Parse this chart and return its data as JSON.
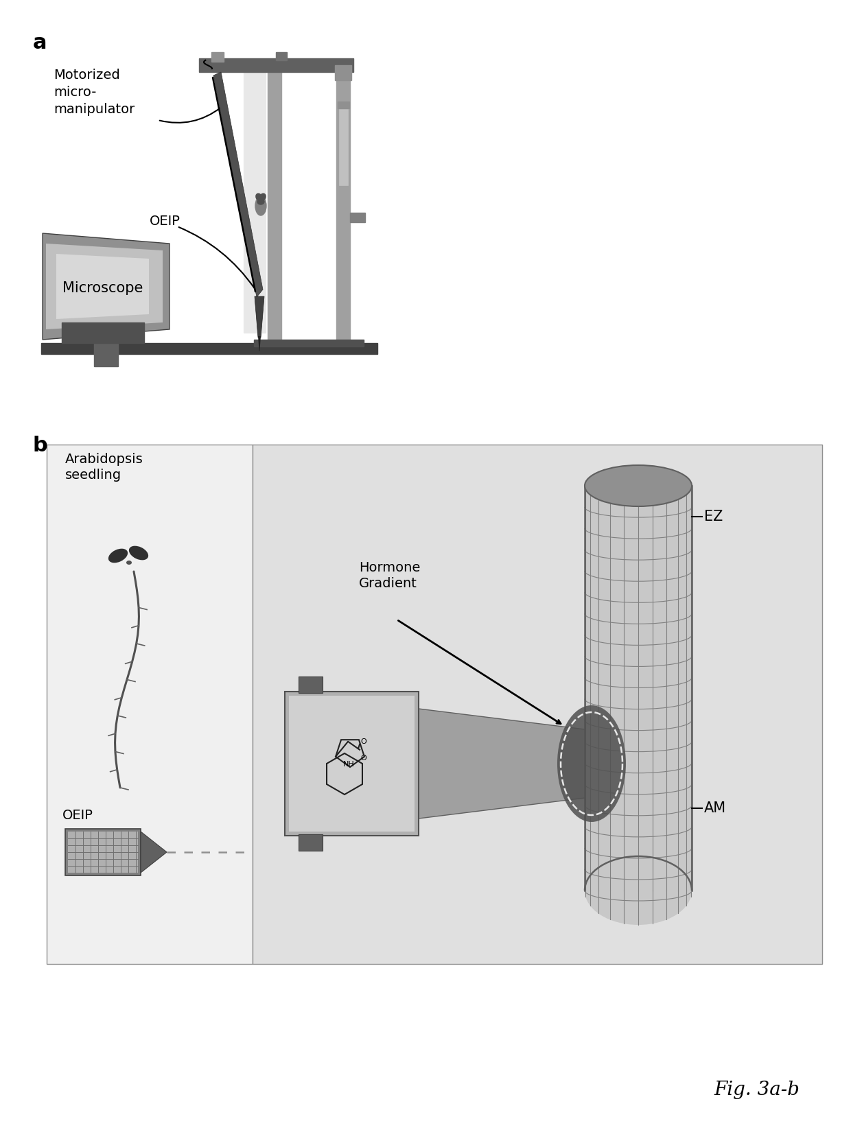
{
  "background_color": "#ffffff",
  "panel_a_label": "a",
  "panel_b_label": "b",
  "panel_a_texts": {
    "motorized": "Motorized\nmicro-\nmanipulator",
    "oeip": "OEIP",
    "microscope": "Microscope"
  },
  "panel_b_texts": {
    "arabidopsis": "Arabidopsis\nseedling",
    "oeip": "OEIP",
    "hormone": "Hormone\nGradient",
    "ez": "EZ",
    "am": "AM"
  },
  "fig_caption": "Fig. 3a-b",
  "gray_light": "#c8c8c8",
  "gray_mid": "#a0a0a0",
  "gray_dark": "#606060",
  "gray_very_dark": "#303030",
  "gray_bg": "#d8d8d8",
  "gray_panel": "#e0e0e0"
}
